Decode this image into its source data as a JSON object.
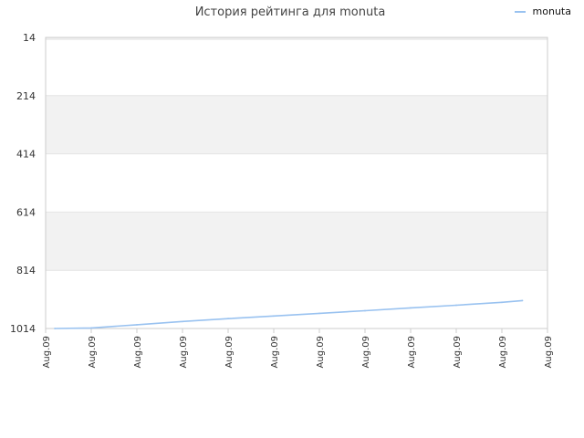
{
  "chart_data": {
    "type": "line",
    "title": "История рейтинга для monuta",
    "xlabel": "",
    "ylabel": "",
    "x_tick_labels": [
      "Aug.09",
      "Aug.09",
      "Aug.09",
      "Aug.09",
      "Aug.09",
      "Aug.09",
      "Aug.09",
      "Aug.09",
      "Aug.09",
      "Aug.09",
      "Aug.09",
      "Aug.09"
    ],
    "y_ticks": [
      14,
      214,
      414,
      614,
      814,
      1014
    ],
    "ylim": [
      14,
      1014
    ],
    "y_inverted": true,
    "xlim": [
      0,
      11
    ],
    "grid": true,
    "legend_position": "top-right",
    "series": [
      {
        "name": "monuta",
        "color": "#99c2f0",
        "x": [
          0.2,
          1.0,
          2.0,
          3.0,
          4.0,
          5.0,
          6.0,
          7.0,
          8.0,
          9.0,
          10.0,
          10.45
        ],
        "y": [
          1014,
          1012,
          1001,
          990,
          980,
          971,
          962,
          953,
          943,
          934,
          924,
          918
        ]
      }
    ]
  },
  "colors": {
    "plot_band": "#f2f2f2",
    "plot_border": "#cccccc",
    "axis_text": "#333333"
  }
}
